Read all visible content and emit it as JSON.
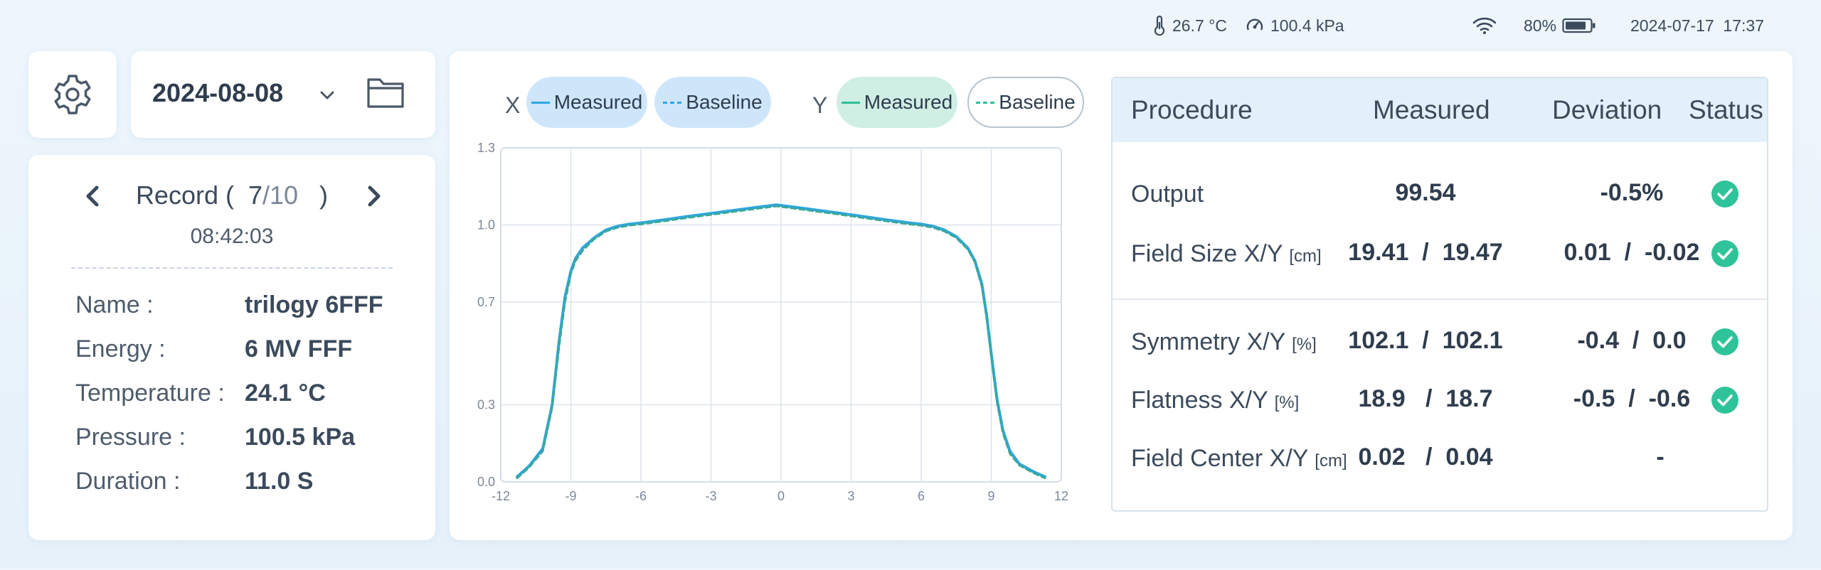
{
  "status_bar": {
    "temperature": "26.7 °C",
    "pressure": "100.4 kPa",
    "battery": "80%",
    "datetime": "2024-07-17  17:37"
  },
  "date_selector": {
    "value": "2024-08-08"
  },
  "record": {
    "label_open": "Record (",
    "current": "7",
    "total": "/10",
    "label_close": ")",
    "time": "08:42:03",
    "fields": [
      {
        "label": "Name :",
        "value": "trilogy 6FFF"
      },
      {
        "label": "Energy :",
        "value": "6 MV FFF"
      },
      {
        "label": "Temperature :",
        "value": "24.1 °C"
      },
      {
        "label": "Pressure :",
        "value": "100.5 kPa"
      },
      {
        "label": "Duration :",
        "value": "11.0 S"
      }
    ]
  },
  "legend": {
    "x_label": "X",
    "y_label": "Y",
    "x_measured": "Measured",
    "x_baseline": "Baseline",
    "y_measured": "Measured",
    "y_baseline": "Baseline"
  },
  "colors": {
    "x_measured": "#2ea6e0",
    "x_baseline": "#2ea6e0",
    "y_measured": "#2fbf97",
    "y_baseline": "#2fbf97",
    "status_ok": "#2fc39a",
    "accent": "#e3f0fb"
  },
  "chart_data": {
    "type": "line",
    "xlim": [
      -12,
      12
    ],
    "ylim": [
      0.0,
      1.3
    ],
    "x_ticks": [
      "-12",
      "-9",
      "-6",
      "-3",
      "0",
      "3",
      "6",
      "9",
      "12"
    ],
    "y_ticks": [
      "0.0",
      "0.3",
      "0.7",
      "1.0",
      "1.3"
    ],
    "grid": true,
    "series": [
      {
        "name": "Measured",
        "style": "solid",
        "x": [
          -11.3,
          -10.8,
          -10.2,
          -9.8,
          -9.5,
          -9.25,
          -9.0,
          -8.8,
          -8.5,
          -8.0,
          -7.5,
          -7.0,
          -6.5,
          -6.0,
          -5.0,
          -4.0,
          -3.0,
          -2.0,
          -1.0,
          -0.2,
          0.5,
          1.5,
          2.5,
          3.5,
          4.5,
          5.5,
          6.0,
          6.5,
          7.0,
          7.5,
          8.0,
          8.3,
          8.6,
          8.8,
          9.0,
          9.25,
          9.5,
          9.8,
          10.2,
          10.8,
          11.3
        ],
        "y": [
          0.02,
          0.06,
          0.13,
          0.3,
          0.55,
          0.72,
          0.82,
          0.87,
          0.91,
          0.95,
          0.98,
          0.995,
          1.003,
          1.008,
          1.02,
          1.033,
          1.045,
          1.057,
          1.069,
          1.078,
          1.07,
          1.058,
          1.046,
          1.033,
          1.02,
          1.008,
          1.003,
          0.995,
          0.98,
          0.955,
          0.91,
          0.86,
          0.77,
          0.65,
          0.5,
          0.32,
          0.2,
          0.12,
          0.07,
          0.04,
          0.02
        ]
      },
      {
        "name": "Baseline",
        "style": "dashed",
        "x": [
          -11.3,
          -10.8,
          -10.2,
          -9.8,
          -9.5,
          -9.25,
          -9.0,
          -8.8,
          -8.5,
          -8.0,
          -7.5,
          -7.0,
          -6.5,
          -6.0,
          -5.0,
          -4.0,
          -3.0,
          -2.0,
          -1.0,
          -0.2,
          0.5,
          1.5,
          2.5,
          3.5,
          4.5,
          5.5,
          6.0,
          6.5,
          7.0,
          7.5,
          8.0,
          8.3,
          8.6,
          8.8,
          9.0,
          9.25,
          9.5,
          9.8,
          10.2,
          10.8,
          11.3
        ],
        "y": [
          0.015,
          0.055,
          0.12,
          0.29,
          0.53,
          0.7,
          0.81,
          0.86,
          0.9,
          0.945,
          0.975,
          0.99,
          0.998,
          1.003,
          1.015,
          1.028,
          1.04,
          1.052,
          1.064,
          1.073,
          1.065,
          1.053,
          1.041,
          1.028,
          1.015,
          1.003,
          0.998,
          0.99,
          0.975,
          0.95,
          0.905,
          0.855,
          0.76,
          0.64,
          0.49,
          0.31,
          0.19,
          0.11,
          0.065,
          0.035,
          0.015
        ]
      }
    ]
  },
  "table": {
    "headers": [
      "Procedure",
      "Measured",
      "Deviation",
      "Status"
    ],
    "rows": [
      {
        "procedure": "Output",
        "unit": "",
        "measured": "99.54",
        "deviation": "-0.5%",
        "status": "ok"
      },
      {
        "procedure": "Field Size X/Y",
        "unit": "[cm]",
        "measured": "19.41  /  19.47",
        "deviation": "0.01  /  -0.02",
        "status": "ok"
      },
      {
        "procedure": "Symmetry X/Y",
        "unit": "[%]",
        "measured": "102.1  /  102.1",
        "deviation": "-0.4  /  0.0",
        "status": "ok"
      },
      {
        "procedure": "Flatness X/Y",
        "unit": "[%]",
        "measured": "18.9   /  18.7",
        "deviation": "-0.5  /  -0.6",
        "status": "ok"
      },
      {
        "procedure": "Field Center X/Y",
        "unit": "[cm]",
        "measured": "0.02   /  0.04",
        "deviation": "-",
        "status": ""
      }
    ]
  }
}
